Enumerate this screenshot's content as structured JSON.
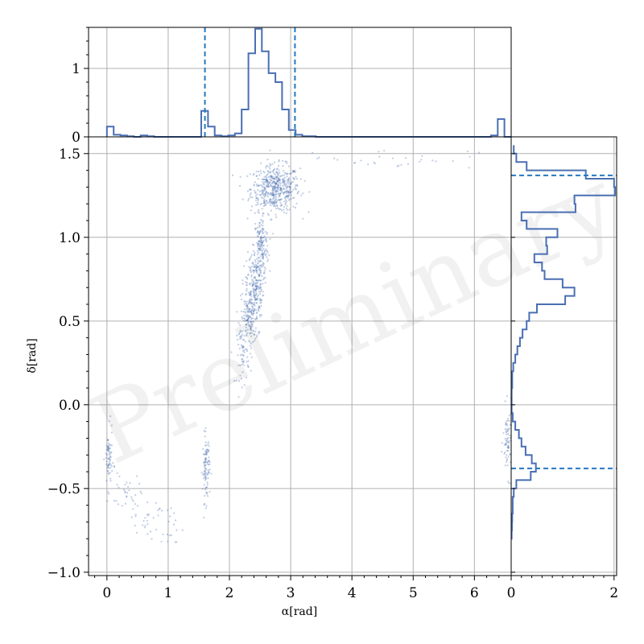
{
  "watermark": "Preliminary",
  "colors": {
    "series": "#4a6fb3",
    "points": "#4a6fb3",
    "dashed": "#2479c1",
    "grid": "#b0b0b0"
  },
  "chart_data": [
    {
      "id": "main-scatter",
      "type": "scatter",
      "xlabel": "α[rad]",
      "ylabel": "δ[rad]",
      "xlim": [
        -0.3,
        6.6
      ],
      "ylim": [
        -1.02,
        1.6
      ],
      "xticks": [
        {
          "v": 0,
          "label": "0"
        },
        {
          "v": 1,
          "label": "1"
        },
        {
          "v": 2,
          "label": "2"
        },
        {
          "v": 3,
          "label": "3"
        },
        {
          "v": 4,
          "label": "4"
        },
        {
          "v": 5,
          "label": "5"
        },
        {
          "v": 6,
          "label": "6"
        }
      ],
      "yticks": [
        {
          "v": -1.0,
          "label": "−1.0"
        },
        {
          "v": -0.5,
          "label": "−0.5"
        },
        {
          "v": 0.0,
          "label": "0.0"
        },
        {
          "v": 0.5,
          "label": "0.5"
        },
        {
          "v": 1.0,
          "label": "1.0"
        },
        {
          "v": 1.5,
          "label": "1.5"
        }
      ],
      "grid": true,
      "clusters": [
        {
          "name": "upper-blob",
          "x": 2.75,
          "y": 1.29,
          "sx": 0.2,
          "sy": 0.07,
          "n": 520
        },
        {
          "name": "arc-upper",
          "x": 2.52,
          "y": 0.95,
          "sx": 0.06,
          "sy": 0.09,
          "n": 150
        },
        {
          "name": "arc-middle",
          "x": 2.42,
          "y": 0.72,
          "sx": 0.07,
          "sy": 0.1,
          "n": 200
        },
        {
          "name": "arc-lower",
          "x": 2.33,
          "y": 0.52,
          "sx": 0.07,
          "sy": 0.09,
          "n": 170
        },
        {
          "name": "arc-tail",
          "x": 2.22,
          "y": 0.3,
          "sx": 0.05,
          "sy": 0.09,
          "n": 60
        },
        {
          "name": "alpha-1.6",
          "x": 1.62,
          "y": -0.38,
          "sx": 0.03,
          "sy": 0.1,
          "n": 100
        },
        {
          "name": "alpha-6.5",
          "x": 6.55,
          "y": -0.22,
          "sx": 0.04,
          "sy": 0.1,
          "n": 80
        },
        {
          "name": "alpha-0",
          "x": 0.03,
          "y": -0.33,
          "sx": 0.03,
          "sy": 0.09,
          "n": 70
        },
        {
          "name": "lower-arc-a",
          "x": 0.3,
          "y": -0.52,
          "sx": 0.12,
          "sy": 0.06,
          "n": 30
        },
        {
          "name": "lower-arc-b",
          "x": 0.65,
          "y": -0.66,
          "sx": 0.18,
          "sy": 0.05,
          "n": 30
        },
        {
          "name": "lower-arc-c",
          "x": 1.05,
          "y": -0.73,
          "sx": 0.12,
          "sy": 0.06,
          "n": 18
        },
        {
          "name": "upper-right-sparse",
          "x": 4.6,
          "y": 1.47,
          "sx": 0.7,
          "sy": 0.03,
          "n": 30
        }
      ]
    },
    {
      "id": "top-histogram",
      "type": "bar",
      "xlim": [
        -0.3,
        6.6
      ],
      "ylim": [
        0,
        1.6
      ],
      "yticks": [
        {
          "v": 0,
          "label": "0"
        },
        {
          "v": 1,
          "label": "1"
        }
      ],
      "bin_width": 0.11,
      "bin_start": 0.0,
      "values": [
        0.15,
        0.03,
        0.02,
        0.01,
        0.0,
        0.02,
        0.01,
        0.0,
        0.0,
        0.0,
        0.0,
        0.0,
        0.0,
        0.0,
        0.38,
        0.15,
        0.02,
        0.01,
        0.02,
        0.05,
        0.4,
        1.22,
        1.58,
        1.25,
        0.93,
        0.8,
        0.4,
        0.1,
        0.03,
        0.01,
        0.01,
        0.0,
        0.0,
        0.0,
        0.0,
        0.0,
        0.0,
        0.0,
        0.0,
        0.0,
        0.0,
        0.0,
        0.0,
        0.0,
        0.0,
        0.0,
        0.0,
        0.0,
        0.0,
        0.0,
        0.0,
        0.0,
        0.0,
        0.0,
        0.0,
        0.0,
        0.0,
        0.02,
        0.26,
        0.0
      ],
      "dashed_lines": [
        1.6,
        3.07
      ]
    },
    {
      "id": "right-histogram",
      "type": "bar",
      "orientation": "horizontal",
      "ylim": [
        -1.02,
        1.6
      ],
      "xlim": [
        0,
        2.05
      ],
      "xticks": [
        {
          "v": 0,
          "label": "0"
        },
        {
          "v": 2,
          "label": "2"
        }
      ],
      "bins": [
        {
          "y0": -0.8,
          "y1": -0.75,
          "v": 0.01
        },
        {
          "y0": -0.75,
          "y1": -0.7,
          "v": 0.015
        },
        {
          "y0": -0.7,
          "y1": -0.65,
          "v": 0.02
        },
        {
          "y0": -0.65,
          "y1": -0.6,
          "v": 0.03
        },
        {
          "y0": -0.6,
          "y1": -0.55,
          "v": 0.03
        },
        {
          "y0": -0.55,
          "y1": -0.5,
          "v": 0.05
        },
        {
          "y0": -0.5,
          "y1": -0.45,
          "v": 0.1
        },
        {
          "y0": -0.45,
          "y1": -0.4,
          "v": 0.38
        },
        {
          "y0": -0.4,
          "y1": -0.35,
          "v": 0.48
        },
        {
          "y0": -0.35,
          "y1": -0.3,
          "v": 0.4
        },
        {
          "y0": -0.3,
          "y1": -0.25,
          "v": 0.28
        },
        {
          "y0": -0.25,
          "y1": -0.2,
          "v": 0.2
        },
        {
          "y0": -0.2,
          "y1": -0.15,
          "v": 0.15
        },
        {
          "y0": -0.15,
          "y1": -0.1,
          "v": 0.08
        },
        {
          "y0": -0.1,
          "y1": -0.05,
          "v": 0.03
        },
        {
          "y0": -0.05,
          "y1": 0.0,
          "v": 0.01
        },
        {
          "y0": 0.0,
          "y1": 0.05,
          "v": 0.01
        },
        {
          "y0": 0.05,
          "y1": 0.1,
          "v": 0.01
        },
        {
          "y0": 0.1,
          "y1": 0.15,
          "v": 0.02
        },
        {
          "y0": 0.15,
          "y1": 0.2,
          "v": 0.02
        },
        {
          "y0": 0.2,
          "y1": 0.25,
          "v": 0.04
        },
        {
          "y0": 0.25,
          "y1": 0.3,
          "v": 0.08
        },
        {
          "y0": 0.3,
          "y1": 0.35,
          "v": 0.12
        },
        {
          "y0": 0.35,
          "y1": 0.4,
          "v": 0.17
        },
        {
          "y0": 0.4,
          "y1": 0.45,
          "v": 0.22
        },
        {
          "y0": 0.45,
          "y1": 0.5,
          "v": 0.3
        },
        {
          "y0": 0.5,
          "y1": 0.55,
          "v": 0.35
        },
        {
          "y0": 0.55,
          "y1": 0.6,
          "v": 0.5
        },
        {
          "y0": 0.6,
          "y1": 0.65,
          "v": 1.05
        },
        {
          "y0": 0.65,
          "y1": 0.7,
          "v": 1.23
        },
        {
          "y0": 0.7,
          "y1": 0.75,
          "v": 1.0
        },
        {
          "y0": 0.75,
          "y1": 0.8,
          "v": 0.65
        },
        {
          "y0": 0.8,
          "y1": 0.85,
          "v": 0.6
        },
        {
          "y0": 0.85,
          "y1": 0.9,
          "v": 0.45
        },
        {
          "y0": 0.9,
          "y1": 0.95,
          "v": 0.7
        },
        {
          "y0": 0.95,
          "y1": 1.0,
          "v": 0.68
        },
        {
          "y0": 1.0,
          "y1": 1.05,
          "v": 0.9
        },
        {
          "y0": 1.05,
          "y1": 1.1,
          "v": 0.3
        },
        {
          "y0": 1.1,
          "y1": 1.15,
          "v": 0.2
        },
        {
          "y0": 1.15,
          "y1": 1.2,
          "v": 1.25
        },
        {
          "y0": 1.2,
          "y1": 1.25,
          "v": 1.23
        },
        {
          "y0": 1.25,
          "y1": 1.3,
          "v": 2.02
        },
        {
          "y0": 1.3,
          "y1": 1.35,
          "v": 2.0
        },
        {
          "y0": 1.35,
          "y1": 1.4,
          "v": 1.45
        },
        {
          "y0": 1.4,
          "y1": 1.45,
          "v": 0.3
        },
        {
          "y0": 1.45,
          "y1": 1.5,
          "v": 0.1
        },
        {
          "y0": 1.5,
          "y1": 1.55,
          "v": 0.05
        }
      ],
      "dashed_lines": [
        1.37,
        -0.38
      ]
    }
  ]
}
